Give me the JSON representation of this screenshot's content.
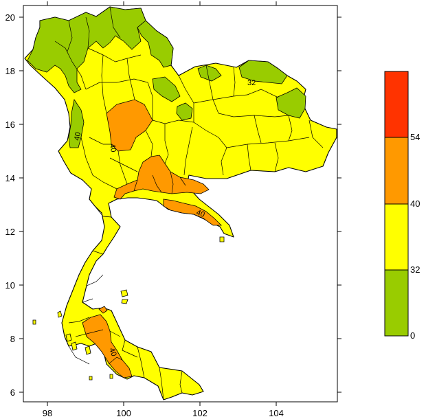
{
  "map": {
    "x_tick_labels": [
      "98",
      "100",
      "102",
      "104"
    ],
    "y_tick_labels": [
      "20",
      "18",
      "16",
      "14",
      "12",
      "10",
      "8",
      "6"
    ],
    "contour_labels": [
      "40",
      "40",
      "40",
      "32",
      "40"
    ]
  },
  "legend": {
    "levels": [
      "0",
      "32",
      "40",
      "54"
    ],
    "bins": [
      {
        "from": 0,
        "to": 32,
        "color": "#99cc00"
      },
      {
        "from": 32,
        "to": 40,
        "color": "#ffff00"
      },
      {
        "from": 40,
        "to": 54,
        "color": "#ff9900"
      },
      {
        "from": 54,
        "to": null,
        "color": "#ff3300"
      }
    ]
  },
  "colors": {
    "green": "#99cc00",
    "yellow": "#ffff00",
    "orange": "#ff9900",
    "red": "#ff3300",
    "boundary": "#000000"
  }
}
